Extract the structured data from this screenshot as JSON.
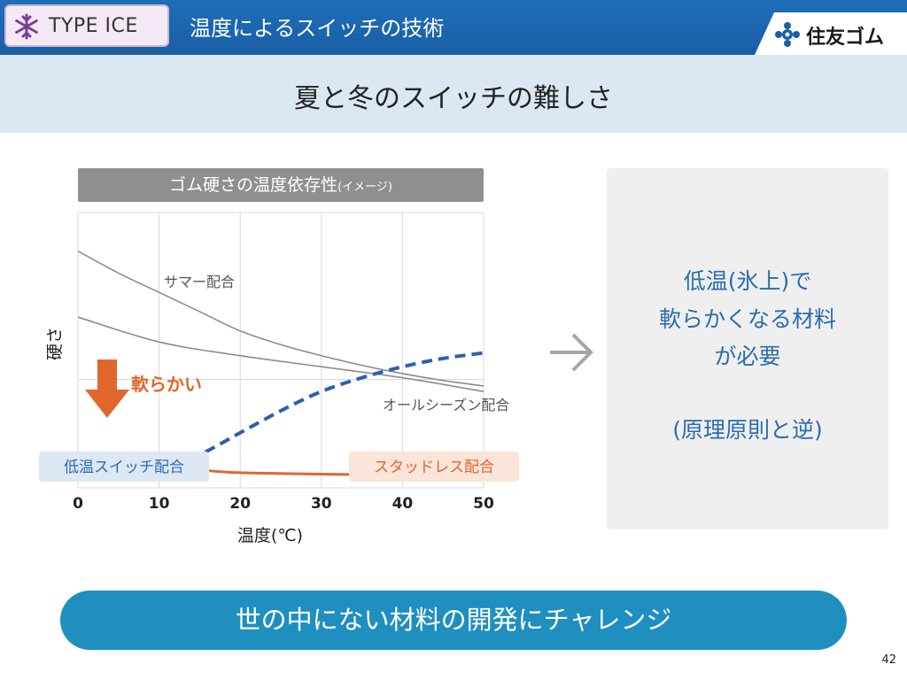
{
  "header": {
    "badge_text": "TYPE ICE",
    "title": "温度によるスイッチの技術",
    "logo_text": "住友ゴム"
  },
  "subtitle": "夏と冬のスイッチの難しさ",
  "chart_title": {
    "main": "ゴム硬さの温度依存性",
    "suffix": "(イメージ)"
  },
  "chart_data": {
    "type": "line",
    "title": "ゴム硬さの温度依存性(イメージ)",
    "xlabel": "温度(℃)",
    "ylabel": "硬さ",
    "xlim": [
      0,
      50
    ],
    "ylim": [
      0,
      100
    ],
    "x_ticks": [
      "0",
      "10",
      "20",
      "30",
      "40",
      "50"
    ],
    "grid": true,
    "series": [
      {
        "name": "サマー配合",
        "color": "#8c8c8c",
        "style": "solid",
        "points": [
          [
            0,
            86
          ],
          [
            5,
            78
          ],
          [
            10,
            71
          ],
          [
            15,
            64
          ],
          [
            20,
            57
          ],
          [
            25,
            52
          ],
          [
            30,
            48
          ],
          [
            35,
            44.5
          ],
          [
            40,
            41.5
          ],
          [
            45,
            39
          ],
          [
            50,
            37
          ]
        ]
      },
      {
        "name": "オールシーズン配合",
        "color": "#8c8c8c",
        "style": "solid",
        "points": [
          [
            0,
            62
          ],
          [
            10,
            53
          ],
          [
            20,
            48
          ],
          [
            30,
            44
          ],
          [
            40,
            40
          ],
          [
            50,
            35
          ]
        ]
      },
      {
        "name": "低温スイッチ配合",
        "color": "#2e5fae",
        "style": "dashed",
        "points": [
          [
            0,
            8
          ],
          [
            3,
            4
          ],
          [
            6,
            3.5
          ],
          [
            10,
            6
          ],
          [
            15,
            12
          ],
          [
            20,
            20
          ],
          [
            25,
            28
          ],
          [
            30,
            35
          ],
          [
            35,
            40
          ],
          [
            40,
            44
          ],
          [
            45,
            47
          ],
          [
            50,
            49
          ]
        ]
      },
      {
        "name": "スタッドレス配合",
        "color": "#e0662c",
        "style": "solid",
        "points": [
          [
            0,
            12
          ],
          [
            5,
            10
          ],
          [
            10,
            8
          ],
          [
            15,
            6.5
          ],
          [
            20,
            5.5
          ],
          [
            30,
            5
          ],
          [
            40,
            4.5
          ],
          [
            50,
            3.5
          ]
        ]
      }
    ],
    "annotations": [
      {
        "text": "軟らかい",
        "color": "#e0662c"
      }
    ]
  },
  "labels": {
    "soft": "軟らかい",
    "low_temp_switch": "低温スイッチ配合",
    "studless": "スタッドレス配合",
    "summer": "サマー配合",
    "all_season": "オールシーズン配合"
  },
  "right_panel": {
    "lines": [
      "低温(氷上)で",
      "軟らかくなる材料",
      "が必要",
      "",
      "(原理原則と逆)"
    ]
  },
  "banner": "世の中にない材料の開発にチャレンジ",
  "page_number": "42",
  "colors": {
    "header_blue": "#1a5fa6",
    "accent_blue": "#2a6cb0",
    "orange": "#e0662c",
    "banner_blue": "#1f8fc0"
  }
}
